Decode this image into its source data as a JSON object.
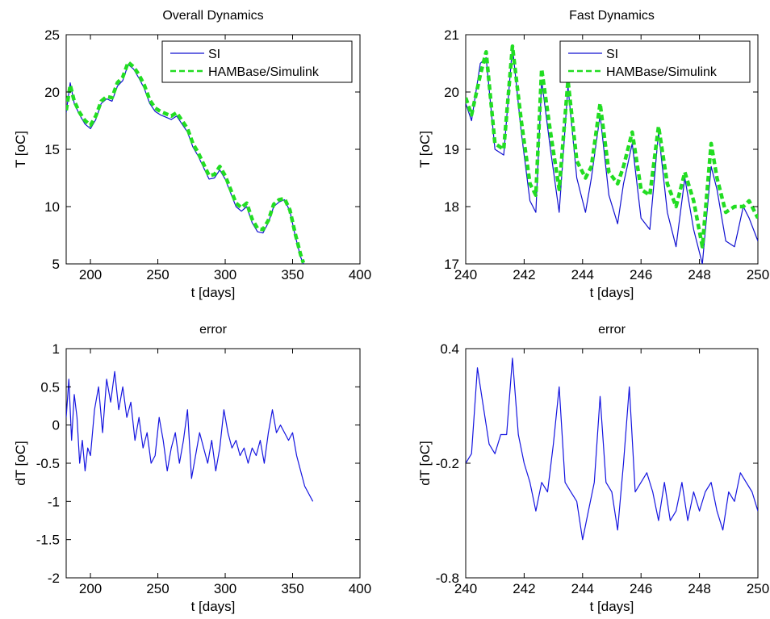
{
  "colors": {
    "si": "#1010d0",
    "ham": "#22dd22",
    "error": "#1515e0"
  },
  "chart_data": [
    {
      "id": "overall",
      "type": "line",
      "title": "Overall Dynamics",
      "xlabel": "t [days]",
      "ylabel": "T [oC]",
      "xlim": [
        182,
        400
      ],
      "ylim": [
        5,
        25
      ],
      "xticks": [
        200,
        250,
        300,
        350,
        400
      ],
      "yticks": [
        5,
        10,
        15,
        20,
        25
      ],
      "xtick_labels": [
        "200",
        "250",
        "300",
        "350",
        "400"
      ],
      "ytick_labels": [
        "5",
        "10",
        "15",
        "20",
        "25"
      ],
      "legend_position": "top-right",
      "series": [
        {
          "name": "SI",
          "style": "solid",
          "x": [
            182,
            185,
            188,
            192,
            196,
            200,
            204,
            208,
            212,
            216,
            220,
            224,
            228,
            232,
            236,
            240,
            244,
            248,
            252,
            256,
            260,
            264,
            268,
            272,
            276,
            280,
            284,
            288,
            292,
            296,
            300,
            304,
            308,
            312,
            316,
            320,
            324,
            328,
            332,
            336,
            340,
            344,
            348,
            352,
            356,
            358
          ],
          "y": [
            18.2,
            20.8,
            19.0,
            18.0,
            17.2,
            16.8,
            17.6,
            19.0,
            19.4,
            19.2,
            20.5,
            21.0,
            22.4,
            22.0,
            21.2,
            20.3,
            19.0,
            18.3,
            18.0,
            17.8,
            17.6,
            17.9,
            17.2,
            16.5,
            15.2,
            14.4,
            13.4,
            12.4,
            12.5,
            13.2,
            12.4,
            11.2,
            10.0,
            9.6,
            10.0,
            8.6,
            7.8,
            7.7,
            8.6,
            10.0,
            10.4,
            10.6,
            9.6,
            7.4,
            5.6,
            5.0
          ]
        },
        {
          "name": "HAMBase/Simulink",
          "style": "dashed",
          "x": [
            182,
            185,
            188,
            192,
            196,
            200,
            204,
            208,
            212,
            216,
            220,
            224,
            228,
            232,
            236,
            240,
            244,
            248,
            252,
            256,
            260,
            264,
            268,
            272,
            276,
            280,
            284,
            288,
            292,
            296,
            300,
            304,
            308,
            312,
            316,
            320,
            324,
            328,
            332,
            336,
            340,
            344,
            348,
            352,
            356,
            358
          ],
          "y": [
            18.4,
            20.6,
            19.2,
            18.2,
            17.5,
            17.1,
            17.9,
            19.2,
            19.6,
            19.5,
            20.8,
            21.3,
            22.6,
            22.2,
            21.5,
            20.6,
            19.3,
            18.6,
            18.3,
            18.1,
            17.9,
            18.2,
            17.5,
            16.8,
            15.5,
            14.7,
            13.7,
            12.7,
            12.8,
            13.5,
            12.7,
            11.5,
            10.3,
            9.9,
            10.3,
            8.9,
            8.1,
            8.0,
            8.8,
            10.2,
            10.6,
            10.7,
            9.7,
            7.6,
            5.8,
            5.1
          ]
        }
      ]
    },
    {
      "id": "fast",
      "type": "line",
      "title": "Fast Dynamics",
      "xlabel": "t [days]",
      "ylabel": "T [oC]",
      "xlim": [
        240,
        250
      ],
      "ylim": [
        17,
        21
      ],
      "xticks": [
        240,
        242,
        244,
        246,
        248,
        250
      ],
      "yticks": [
        17,
        18,
        19,
        20,
        21
      ],
      "xtick_labels": [
        "240",
        "242",
        "244",
        "246",
        "248",
        "250"
      ],
      "ytick_labels": [
        "17",
        "18",
        "19",
        "20",
        "21"
      ],
      "legend_position": "top-right",
      "series": [
        {
          "name": "SI",
          "style": "solid",
          "x": [
            240.0,
            240.2,
            240.5,
            240.7,
            241.0,
            241.3,
            241.6,
            241.9,
            242.2,
            242.4,
            242.6,
            242.9,
            243.2,
            243.5,
            243.8,
            244.1,
            244.3,
            244.6,
            244.9,
            245.2,
            245.4,
            245.7,
            246.0,
            246.3,
            246.6,
            246.9,
            247.2,
            247.5,
            247.8,
            248.1,
            248.4,
            248.6,
            248.9,
            249.2,
            249.5,
            249.7,
            250.0
          ],
          "y": [
            19.8,
            19.5,
            20.5,
            20.6,
            19.0,
            18.9,
            20.8,
            19.3,
            18.1,
            17.9,
            20.2,
            19.0,
            17.9,
            20.1,
            18.5,
            17.9,
            18.5,
            19.6,
            18.2,
            17.7,
            18.4,
            19.1,
            17.8,
            17.6,
            19.3,
            17.9,
            17.3,
            18.5,
            17.6,
            17.0,
            18.7,
            18.3,
            17.4,
            17.3,
            18.0,
            17.8,
            17.4
          ]
        },
        {
          "name": "HAMBase/Simulink",
          "style": "dashed",
          "x": [
            240.0,
            240.2,
            240.5,
            240.7,
            241.0,
            241.3,
            241.6,
            241.9,
            242.2,
            242.4,
            242.6,
            242.9,
            243.2,
            243.5,
            243.8,
            244.1,
            244.3,
            244.6,
            244.9,
            245.2,
            245.4,
            245.7,
            246.0,
            246.3,
            246.6,
            246.9,
            247.2,
            247.5,
            247.8,
            248.1,
            248.4,
            248.6,
            248.9,
            249.2,
            249.5,
            249.7,
            250.0
          ],
          "y": [
            19.9,
            19.6,
            20.3,
            20.7,
            19.1,
            19.0,
            20.8,
            19.5,
            18.4,
            18.2,
            20.4,
            19.3,
            18.3,
            20.2,
            18.8,
            18.5,
            18.7,
            19.8,
            18.6,
            18.4,
            18.7,
            19.3,
            18.3,
            18.2,
            19.4,
            18.4,
            18.0,
            18.6,
            18.1,
            17.3,
            19.1,
            18.5,
            17.9,
            18.0,
            18.0,
            18.1,
            17.8
          ]
        }
      ]
    },
    {
      "id": "error-overall",
      "type": "line",
      "title": "error",
      "xlabel": "t [days]",
      "ylabel": "dT [oC]",
      "xlim": [
        182,
        400
      ],
      "ylim": [
        -2,
        1
      ],
      "xticks": [
        200,
        250,
        300,
        350,
        400
      ],
      "yticks": [
        -2,
        -1.5,
        -1,
        -0.5,
        0,
        0.5,
        1
      ],
      "xtick_labels": [
        "200",
        "250",
        "300",
        "350",
        "400"
      ],
      "ytick_labels": [
        "-2",
        "-1.5",
        "-1",
        "-0.5",
        "0",
        "0.5",
        "1"
      ],
      "series": [
        {
          "style": "solid",
          "x": [
            182,
            184,
            186,
            188,
            190,
            192,
            194,
            196,
            198,
            200,
            203,
            206,
            209,
            212,
            215,
            218,
            221,
            224,
            227,
            230,
            233,
            236,
            239,
            242,
            245,
            248,
            251,
            254,
            257,
            260,
            263,
            266,
            269,
            272,
            275,
            278,
            281,
            284,
            287,
            290,
            293,
            296,
            299,
            302,
            305,
            308,
            311,
            314,
            317,
            320,
            323,
            326,
            329,
            332,
            335,
            338,
            341,
            344,
            347,
            350,
            353,
            356,
            359,
            362,
            365
          ],
          "y": [
            0.1,
            0.6,
            -0.2,
            0.4,
            0.1,
            -0.5,
            -0.2,
            -0.6,
            -0.3,
            -0.4,
            0.2,
            0.5,
            -0.1,
            0.6,
            0.3,
            0.7,
            0.2,
            0.5,
            0.1,
            0.3,
            -0.2,
            0.1,
            -0.3,
            -0.1,
            -0.5,
            -0.4,
            0.1,
            -0.2,
            -0.6,
            -0.3,
            -0.1,
            -0.5,
            -0.2,
            0.2,
            -0.7,
            -0.4,
            -0.1,
            -0.3,
            -0.5,
            -0.2,
            -0.6,
            -0.3,
            0.2,
            -0.1,
            -0.3,
            -0.2,
            -0.4,
            -0.3,
            -0.5,
            -0.3,
            -0.4,
            -0.2,
            -0.5,
            -0.1,
            0.2,
            -0.1,
            0.0,
            -0.1,
            -0.2,
            -0.1,
            -0.4,
            -0.6,
            -0.8,
            -0.9,
            -1.0
          ]
        }
      ]
    },
    {
      "id": "error-fast",
      "type": "line",
      "title": "error",
      "xlabel": "t [days]",
      "ylabel": "dT [oC]",
      "xlim": [
        240,
        250
      ],
      "ylim": [
        -0.8,
        0.4
      ],
      "xticks": [
        240,
        242,
        244,
        246,
        248,
        250
      ],
      "yticks": [
        -0.8,
        -0.2,
        0.4
      ],
      "xtick_labels": [
        "240",
        "242",
        "244",
        "246",
        "248",
        "250"
      ],
      "ytick_labels": [
        "-0.8",
        "-0.2",
        "0.4"
      ],
      "series": [
        {
          "style": "solid",
          "x": [
            240.0,
            240.2,
            240.4,
            240.6,
            240.8,
            241.0,
            241.2,
            241.4,
            241.6,
            241.8,
            242.0,
            242.2,
            242.4,
            242.6,
            242.8,
            243.0,
            243.2,
            243.4,
            243.6,
            243.8,
            244.0,
            244.2,
            244.4,
            244.6,
            244.8,
            245.0,
            245.2,
            245.4,
            245.6,
            245.8,
            246.0,
            246.2,
            246.4,
            246.6,
            246.8,
            247.0,
            247.2,
            247.4,
            247.6,
            247.8,
            248.0,
            248.2,
            248.4,
            248.6,
            248.8,
            249.0,
            249.2,
            249.4,
            249.6,
            249.8,
            250.0
          ],
          "y": [
            -0.2,
            -0.15,
            0.3,
            0.1,
            -0.1,
            -0.15,
            -0.05,
            -0.05,
            0.35,
            -0.05,
            -0.2,
            -0.3,
            -0.45,
            -0.3,
            -0.35,
            -0.1,
            0.2,
            -0.3,
            -0.35,
            -0.4,
            -0.6,
            -0.45,
            -0.3,
            0.15,
            -0.3,
            -0.35,
            -0.55,
            -0.2,
            0.2,
            -0.35,
            -0.3,
            -0.25,
            -0.35,
            -0.5,
            -0.3,
            -0.5,
            -0.45,
            -0.3,
            -0.5,
            -0.35,
            -0.45,
            -0.35,
            -0.3,
            -0.45,
            -0.55,
            -0.35,
            -0.4,
            -0.25,
            -0.3,
            -0.35,
            -0.45
          ]
        }
      ]
    }
  ]
}
